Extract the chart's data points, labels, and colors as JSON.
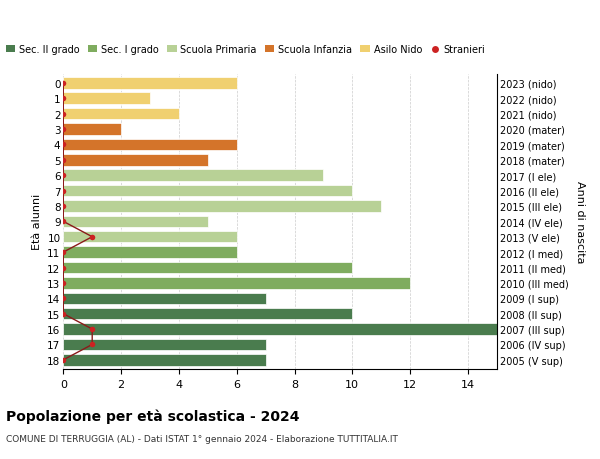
{
  "title": "Popolazione per età scolastica - 2024",
  "subtitle": "COMUNE DI TERRUGGIA (AL) - Dati ISTAT 1° gennaio 2024 - Elaborazione TUTTITALIA.IT",
  "ylabel_left": "Età alunni",
  "ylabel_right": "Anni di nascita",
  "ages": [
    18,
    17,
    16,
    15,
    14,
    13,
    12,
    11,
    10,
    9,
    8,
    7,
    6,
    5,
    4,
    3,
    2,
    1,
    0
  ],
  "right_labels": [
    "2005 (V sup)",
    "2006 (IV sup)",
    "2007 (III sup)",
    "2008 (II sup)",
    "2009 (I sup)",
    "2010 (III med)",
    "2011 (II med)",
    "2012 (I med)",
    "2013 (V ele)",
    "2014 (IV ele)",
    "2015 (III ele)",
    "2016 (II ele)",
    "2017 (I ele)",
    "2018 (mater)",
    "2019 (mater)",
    "2020 (mater)",
    "2021 (nido)",
    "2022 (nido)",
    "2023 (nido)"
  ],
  "bar_values": [
    7,
    7,
    15,
    10,
    7,
    12,
    10,
    6,
    6,
    5,
    11,
    10,
    9,
    5,
    6,
    2,
    4,
    3,
    6
  ],
  "bar_colors": [
    "#4a7c4e",
    "#4a7c4e",
    "#4a7c4e",
    "#4a7c4e",
    "#4a7c4e",
    "#7fac5f",
    "#7fac5f",
    "#7fac5f",
    "#b8d196",
    "#b8d196",
    "#b8d196",
    "#b8d196",
    "#b8d196",
    "#d4742a",
    "#d4742a",
    "#d4742a",
    "#f0d070",
    "#f0d070",
    "#f0d070"
  ],
  "stranieri_x": [
    0,
    1,
    1,
    0,
    0,
    0,
    0,
    0,
    1,
    0,
    0,
    0,
    0,
    0,
    0,
    0,
    0,
    0,
    0
  ],
  "legend_labels": [
    "Sec. II grado",
    "Sec. I grado",
    "Scuola Primaria",
    "Scuola Infanzia",
    "Asilo Nido",
    "Stranieri"
  ],
  "legend_colors": [
    "#4a7c4e",
    "#7fac5f",
    "#b8d196",
    "#d4742a",
    "#f0d070",
    "#cc2222"
  ],
  "xlim": [
    0,
    15
  ],
  "xticks": [
    0,
    2,
    4,
    6,
    8,
    10,
    12,
    14
  ],
  "grid_color": "#cccccc"
}
